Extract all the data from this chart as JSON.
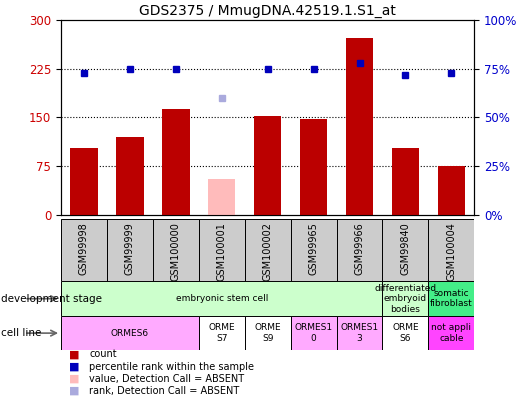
{
  "title": "GDS2375 / MmugDNA.42519.1.S1_at",
  "samples": [
    "GSM99998",
    "GSM99999",
    "GSM100000",
    "GSM100001",
    "GSM100002",
    "GSM99965",
    "GSM99966",
    "GSM99840",
    "GSM100004"
  ],
  "count_values": [
    103,
    120,
    163,
    55,
    152,
    148,
    272,
    103,
    75
  ],
  "count_absent": [
    false,
    false,
    false,
    true,
    false,
    false,
    false,
    false,
    false
  ],
  "percentile_values": [
    73,
    75,
    75,
    60,
    75,
    75,
    78,
    72,
    73
  ],
  "percentile_absent": [
    false,
    false,
    false,
    true,
    false,
    false,
    false,
    false,
    false
  ],
  "ylim_left": [
    0,
    300
  ],
  "ylim_right": [
    0,
    100
  ],
  "yticks_left": [
    0,
    75,
    150,
    225,
    300
  ],
  "yticks_right": [
    0,
    25,
    50,
    75,
    100
  ],
  "ytick_labels_left": [
    "0",
    "75",
    "150",
    "225",
    "300"
  ],
  "ytick_labels_right": [
    "0%",
    "25%",
    "50%",
    "75%",
    "100%"
  ],
  "bar_color_normal": "#bb0000",
  "bar_color_absent": "#ffbbbb",
  "dot_color_normal": "#0000bb",
  "dot_color_absent": "#aaaadd",
  "grid_dotted_color": "#000000",
  "bg_color": "#ffffff",
  "plot_bg": "#ffffff",
  "dev_groups": [
    {
      "label": "embryonic stem cell",
      "start": 0,
      "end": 7,
      "color": "#ccffcc"
    },
    {
      "label": "differentiated\nembryoid\nbodies",
      "start": 7,
      "end": 8,
      "color": "#ccffcc"
    },
    {
      "label": "somatic\nfibroblast",
      "start": 8,
      "end": 9,
      "color": "#44ee88"
    }
  ],
  "cell_groups": [
    {
      "label": "ORMES6",
      "start": 0,
      "end": 3,
      "color": "#ffaaff"
    },
    {
      "label": "ORME\nS7",
      "start": 3,
      "end": 4,
      "color": "#ffffff"
    },
    {
      "label": "ORME\nS9",
      "start": 4,
      "end": 5,
      "color": "#ffffff"
    },
    {
      "label": "ORMES1\n0",
      "start": 5,
      "end": 6,
      "color": "#ffaaff"
    },
    {
      "label": "ORMES1\n3",
      "start": 6,
      "end": 7,
      "color": "#ffaaff"
    },
    {
      "label": "ORME\nS6",
      "start": 7,
      "end": 8,
      "color": "#ffffff"
    },
    {
      "label": "not appli\ncable",
      "start": 8,
      "end": 9,
      "color": "#ff44ff"
    }
  ],
  "legend_items": [
    {
      "color": "#bb0000",
      "label": "count"
    },
    {
      "color": "#0000bb",
      "label": "percentile rank within the sample"
    },
    {
      "color": "#ffbbbb",
      "label": "value, Detection Call = ABSENT"
    },
    {
      "color": "#aaaadd",
      "label": "rank, Detection Call = ABSENT"
    }
  ]
}
